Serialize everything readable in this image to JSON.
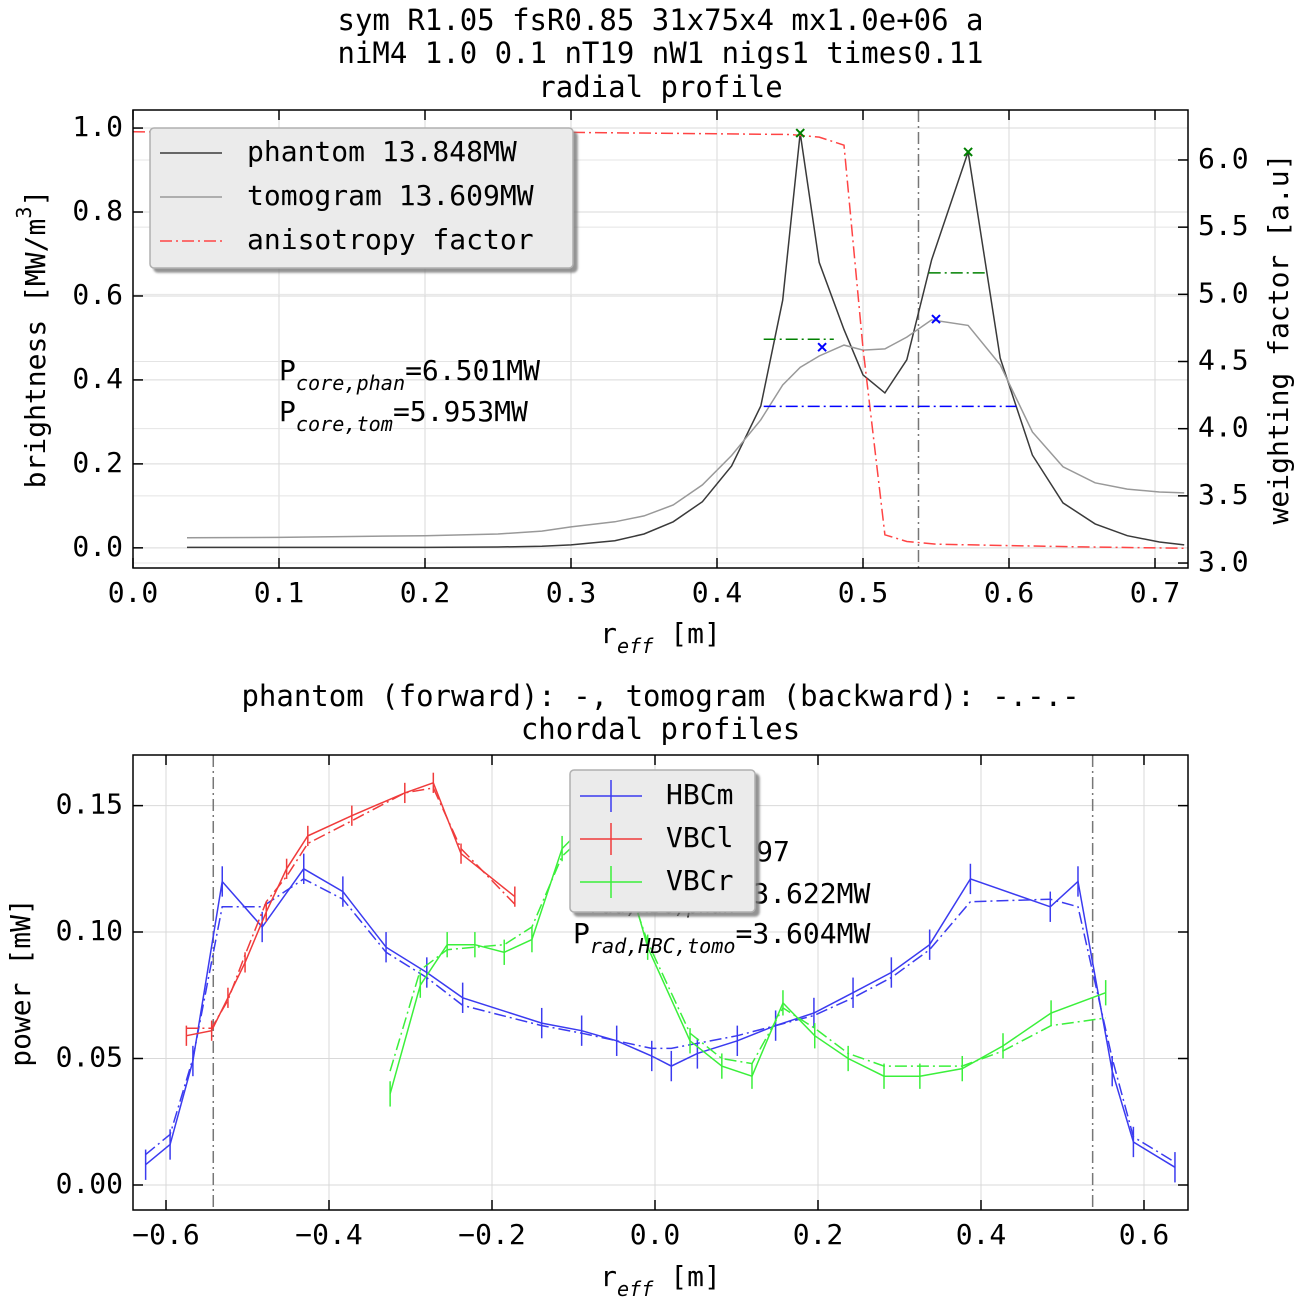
{
  "chart_data": [
    {
      "type": "line",
      "title": [
        "sym R1.05 fsR0.85 31x75x4 mx1.0e+06 a",
        "niM4 1.0 0.1 nT19 nW1 nigs1 times0.11",
        "radial profile"
      ],
      "xlabel": [
        {
          "t": "r"
        },
        {
          "sub": "eff"
        },
        {
          "t": " [m]"
        }
      ],
      "ylabel": [
        {
          "t": "brightness [MW/m"
        },
        {
          "sup": "3"
        },
        {
          "t": "]"
        }
      ],
      "y2label": [
        {
          "t": "weighting factor [a.u]"
        }
      ],
      "xlim": [
        0,
        0.7226
      ],
      "ylim": [
        -0.048,
        1.043
      ],
      "y2lim": [
        2.963,
        6.372
      ],
      "xticks": [
        {
          "value": 0,
          "label": "0.0"
        },
        0.1,
        0.2,
        0.3,
        0.4,
        0.5,
        0.6,
        0.7
      ],
      "yticks": [
        {
          "value": 0,
          "label": "0.0"
        },
        0.2,
        0.4,
        0.6,
        0.8,
        {
          "value": 1,
          "label": "1.0"
        }
      ],
      "y2ticks": [
        {
          "value": 3,
          "label": "3.0"
        },
        3.5,
        {
          "value": 4,
          "label": "4.0"
        },
        4.5,
        {
          "value": 5,
          "label": "5.0"
        },
        5.5,
        {
          "value": 6,
          "label": "6.0"
        }
      ],
      "grid": true,
      "legend": "upper left",
      "series": [
        {
          "name": "phantom 13.848MW",
          "color": "#3a3a3a",
          "style": "solid",
          "x": [
            0.037,
            0.1,
            0.15,
            0.2,
            0.25,
            0.28,
            0.3,
            0.33,
            0.35,
            0.37,
            0.39,
            0.41,
            0.43,
            0.445,
            0.457,
            0.47,
            0.487,
            0.5,
            0.515,
            0.53,
            0.547,
            0.572,
            0.594,
            0.616,
            0.637,
            0.659,
            0.681,
            0.703,
            0.72
          ],
          "values": [
            0.001,
            0.001,
            0.001,
            0.001,
            0.002,
            0.004,
            0.007,
            0.017,
            0.033,
            0.062,
            0.11,
            0.195,
            0.338,
            0.59,
            0.988,
            0.68,
            0.52,
            0.412,
            0.369,
            0.448,
            0.686,
            0.943,
            0.452,
            0.221,
            0.107,
            0.057,
            0.029,
            0.014,
            0.007
          ]
        },
        {
          "name": "tomogram 13.609MW",
          "color": "#999999",
          "style": "solid",
          "x": [
            0.037,
            0.1,
            0.15,
            0.2,
            0.25,
            0.28,
            0.3,
            0.33,
            0.35,
            0.37,
            0.39,
            0.41,
            0.43,
            0.445,
            0.457,
            0.47,
            0.487,
            0.5,
            0.515,
            0.53,
            0.547,
            0.572,
            0.594,
            0.616,
            0.637,
            0.659,
            0.681,
            0.703,
            0.72
          ],
          "values": [
            0.024,
            0.025,
            0.027,
            0.029,
            0.033,
            0.04,
            0.05,
            0.062,
            0.076,
            0.102,
            0.15,
            0.22,
            0.305,
            0.388,
            0.43,
            0.457,
            0.483,
            0.471,
            0.474,
            0.502,
            0.543,
            0.53,
            0.436,
            0.276,
            0.193,
            0.155,
            0.14,
            0.133,
            0.131
          ]
        },
        {
          "name": "anisotropy factor",
          "color": "#ff4444",
          "style": "dashdot",
          "axis": "y2",
          "x": [
            0,
            0.3,
            0.45,
            0.47,
            0.487,
            0.5,
            0.515,
            0.53,
            0.55,
            0.6,
            0.65,
            0.7226
          ],
          "values": [
            6.21,
            6.205,
            6.19,
            6.17,
            6.11,
            4.6,
            3.21,
            3.16,
            3.14,
            3.13,
            3.12,
            3.11
          ]
        },
        {
          "color": "#008000",
          "style": "none",
          "marker": "x",
          "x": [
            0.457,
            0.572
          ],
          "values": [
            0.988,
            0.943
          ]
        },
        {
          "color": "#0000ff",
          "style": "none",
          "marker": "x",
          "x": [
            0.472,
            0.55
          ],
          "values": [
            0.478,
            0.545
          ]
        },
        {
          "color": "#008000",
          "style": "dashdot",
          "x": [
            0.432,
            0.48
          ],
          "values": [
            0.497,
            0.497
          ]
        },
        {
          "color": "#008000",
          "style": "dashdot",
          "x": [
            0.545,
            0.585
          ],
          "values": [
            0.655,
            0.655
          ]
        },
        {
          "color": "#0000ff",
          "style": "dashdot",
          "x": [
            0.432,
            0.605
          ],
          "values": [
            0.337,
            0.337
          ]
        }
      ],
      "vlines": [
        0.538
      ],
      "annotations": [
        [
          {
            "t": "P"
          },
          {
            "sub": "core,phan"
          },
          {
            "t": "=6.501MW"
          }
        ],
        [
          {
            "t": "P"
          },
          {
            "sub": "core,tom"
          },
          {
            "t": "=5.953MW"
          }
        ]
      ]
    },
    {
      "type": "errorbar",
      "title": [
        "phantom (forward): -,   tomogram (backward): -.-.-",
        "chordal profiles"
      ],
      "xlabel": [
        {
          "t": "r"
        },
        {
          "sub": "eff"
        },
        {
          "t": " [m]"
        }
      ],
      "ylabel": [
        {
          "t": "power [mW]"
        }
      ],
      "xlim": [
        -0.6405,
        0.654
      ],
      "ylim": [
        -0.0099,
        0.17
      ],
      "xticks": [
        {
          "value": -0.6,
          "label": "−0.6"
        },
        {
          "value": -0.4,
          "label": "−0.4"
        },
        {
          "value": -0.2,
          "label": "−0.2"
        },
        {
          "value": 0,
          "label": "0.0"
        },
        0.2,
        0.4,
        0.6
      ],
      "yticks": [
        {
          "value": 0,
          "label": "0.00"
        },
        0.05,
        {
          "value": 0.1,
          "label": "0.10"
        },
        0.15
      ],
      "grid": true,
      "legend": "upper center",
      "series": [
        {
          "name": "HBCm",
          "color": "#3b3bf0",
          "x": [
            -0.625,
            -0.595,
            -0.567,
            -0.531,
            -0.482,
            -0.431,
            -0.383,
            -0.33,
            -0.28,
            -0.236,
            -0.139,
            -0.09,
            -0.047,
            -0.004,
            0.02,
            0.052,
            0.101,
            0.148,
            0.195,
            0.243,
            0.29,
            0.337,
            0.387,
            0.485,
            0.519,
            0.561,
            0.587,
            0.638
          ],
          "values": [
            0.008,
            0.016,
            0.049,
            0.12,
            0.102,
            0.125,
            0.116,
            0.094,
            0.084,
            0.074,
            0.064,
            0.061,
            0.057,
            0.051,
            0.047,
            0.052,
            0.057,
            0.063,
            0.068,
            0.076,
            0.084,
            0.095,
            0.121,
            0.11,
            0.12,
            0.045,
            0.017,
            0.007
          ],
          "errors": [
            0.006,
            0.006,
            0.006,
            0.006,
            0.006,
            0.006,
            0.006,
            0.006,
            0.006,
            0.006,
            0.006,
            0.006,
            0.006,
            0.006,
            0.006,
            0.006,
            0.006,
            0.006,
            0.006,
            0.006,
            0.006,
            0.006,
            0.006,
            0.006,
            0.006,
            0.006,
            0.006,
            0.006
          ],
          "backward": [
            0.012,
            0.02,
            0.05,
            0.11,
            0.11,
            0.121,
            0.113,
            0.092,
            0.082,
            0.071,
            0.063,
            0.06,
            0.057,
            0.054,
            0.054,
            0.056,
            0.059,
            0.063,
            0.067,
            0.074,
            0.082,
            0.093,
            0.112,
            0.113,
            0.11,
            0.05,
            0.019,
            0.009
          ]
        },
        {
          "name": "VBCl",
          "color": "#f03b3b",
          "x": [
            -0.575,
            -0.544,
            -0.524,
            -0.503,
            -0.477,
            -0.452,
            -0.426,
            -0.372,
            -0.307,
            -0.272,
            -0.238,
            -0.172
          ],
          "values": [
            0.059,
            0.061,
            0.074,
            0.088,
            0.108,
            0.125,
            0.138,
            0.146,
            0.155,
            0.159,
            0.131,
            0.114
          ],
          "errors": [
            0.004,
            0.004,
            0.004,
            0.004,
            0.004,
            0.004,
            0.004,
            0.004,
            0.004,
            0.004,
            0.004,
            0.004
          ],
          "backward": [
            0.062,
            0.062,
            0.073,
            0.091,
            0.112,
            0.122,
            0.135,
            0.144,
            0.155,
            0.157,
            0.133,
            0.111
          ]
        },
        {
          "name": "VBCr",
          "color": "#3bf03b",
          "x": [
            -0.325,
            -0.288,
            -0.255,
            -0.221,
            -0.185,
            -0.151,
            -0.114,
            -0.08,
            -0.043,
            -0.009,
            0.043,
            0.082,
            0.119,
            0.157,
            0.196,
            0.237,
            0.281,
            0.325,
            0.377,
            0.427,
            0.486,
            0.553
          ],
          "values": [
            0.036,
            0.079,
            0.095,
            0.095,
            0.092,
            0.097,
            0.133,
            0.144,
            0.133,
            0.094,
            0.057,
            0.047,
            0.043,
            0.072,
            0.059,
            0.05,
            0.043,
            0.043,
            0.046,
            0.055,
            0.068,
            0.076
          ],
          "errors": [
            0.005,
            0.005,
            0.005,
            0.005,
            0.005,
            0.005,
            0.005,
            0.005,
            0.005,
            0.005,
            0.005,
            0.005,
            0.005,
            0.005,
            0.005,
            0.005,
            0.005,
            0.005,
            0.005,
            0.005,
            0.005,
            0.005
          ],
          "backward": [
            0.045,
            0.085,
            0.093,
            0.094,
            0.095,
            0.102,
            0.13,
            0.14,
            0.128,
            0.096,
            0.06,
            0.05,
            0.048,
            0.07,
            0.062,
            0.052,
            0.047,
            0.047,
            0.047,
            0.053,
            0.063,
            0.066
          ]
        }
      ],
      "vlines": [
        -0.542,
        0.537
      ],
      "annotations": [
        [
          {
            "t": "χ"
          },
          {
            "t": " =0.997"
          }
        ],
        [
          {
            "t": "P"
          },
          {
            "sub": "rad,HBC,phan"
          },
          {
            "t": "=3.622MW"
          }
        ],
        [
          {
            "t": "P"
          },
          {
            "sub": "rad,HBC,tomo"
          },
          {
            "t": "=3.604MW"
          }
        ]
      ]
    }
  ]
}
